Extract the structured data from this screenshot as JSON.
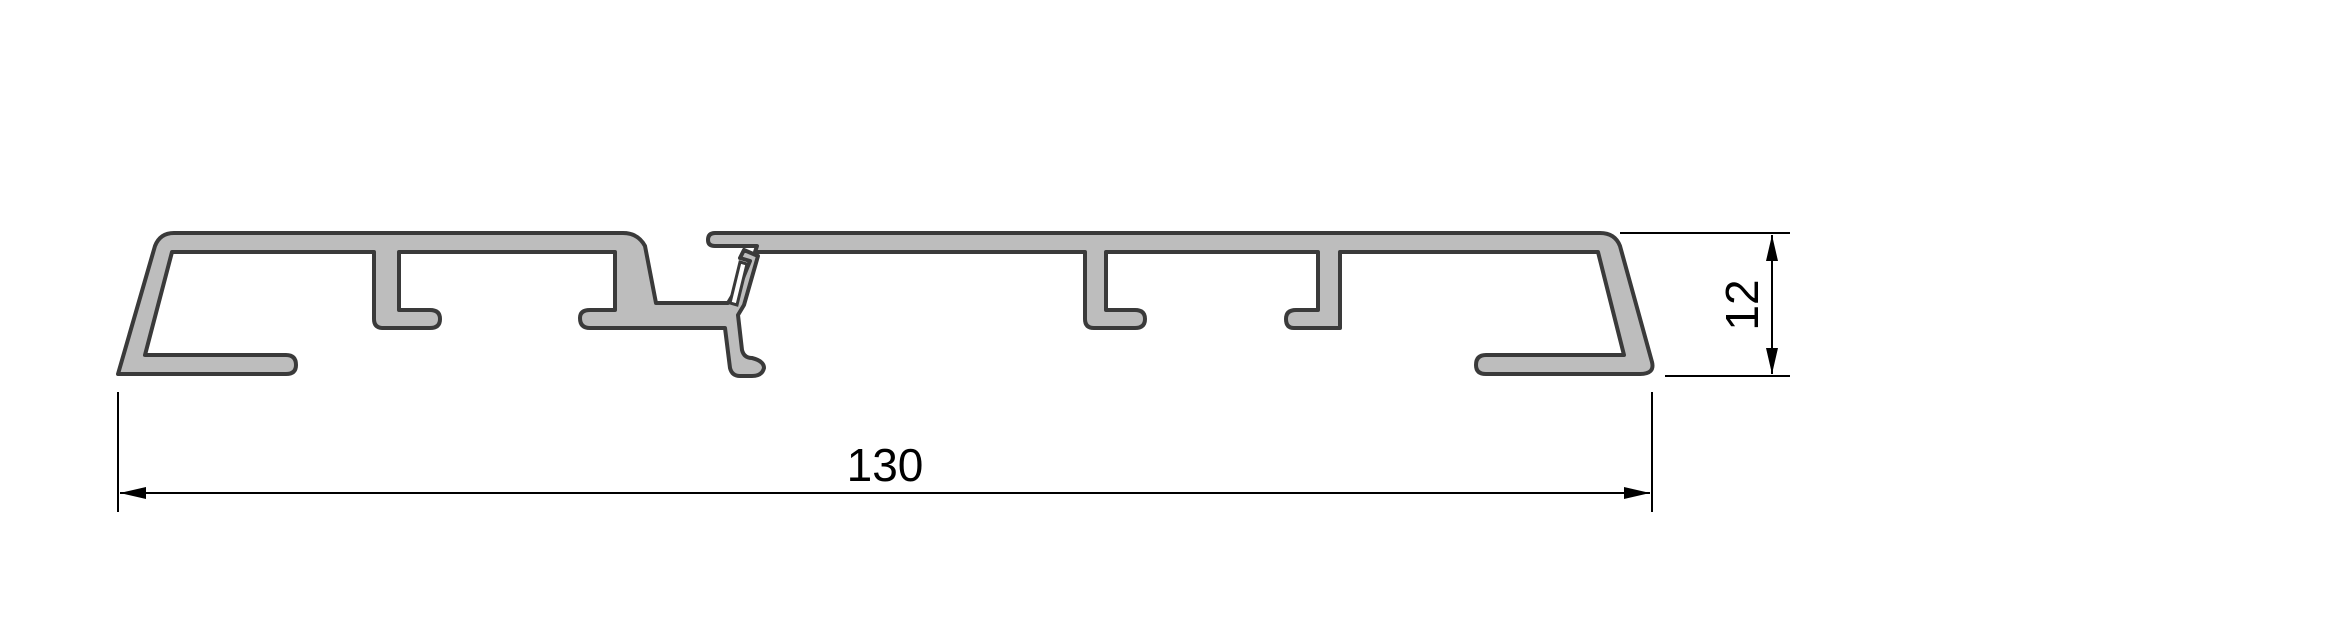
{
  "drawing": {
    "colors": {
      "profile_fill": "#bdbdbd",
      "profile_outline": "#3a3a3a",
      "dimension": "#000000",
      "background": "#ffffff"
    },
    "width_dimension": {
      "value": "130"
    },
    "height_dimension": {
      "value": "12"
    }
  }
}
